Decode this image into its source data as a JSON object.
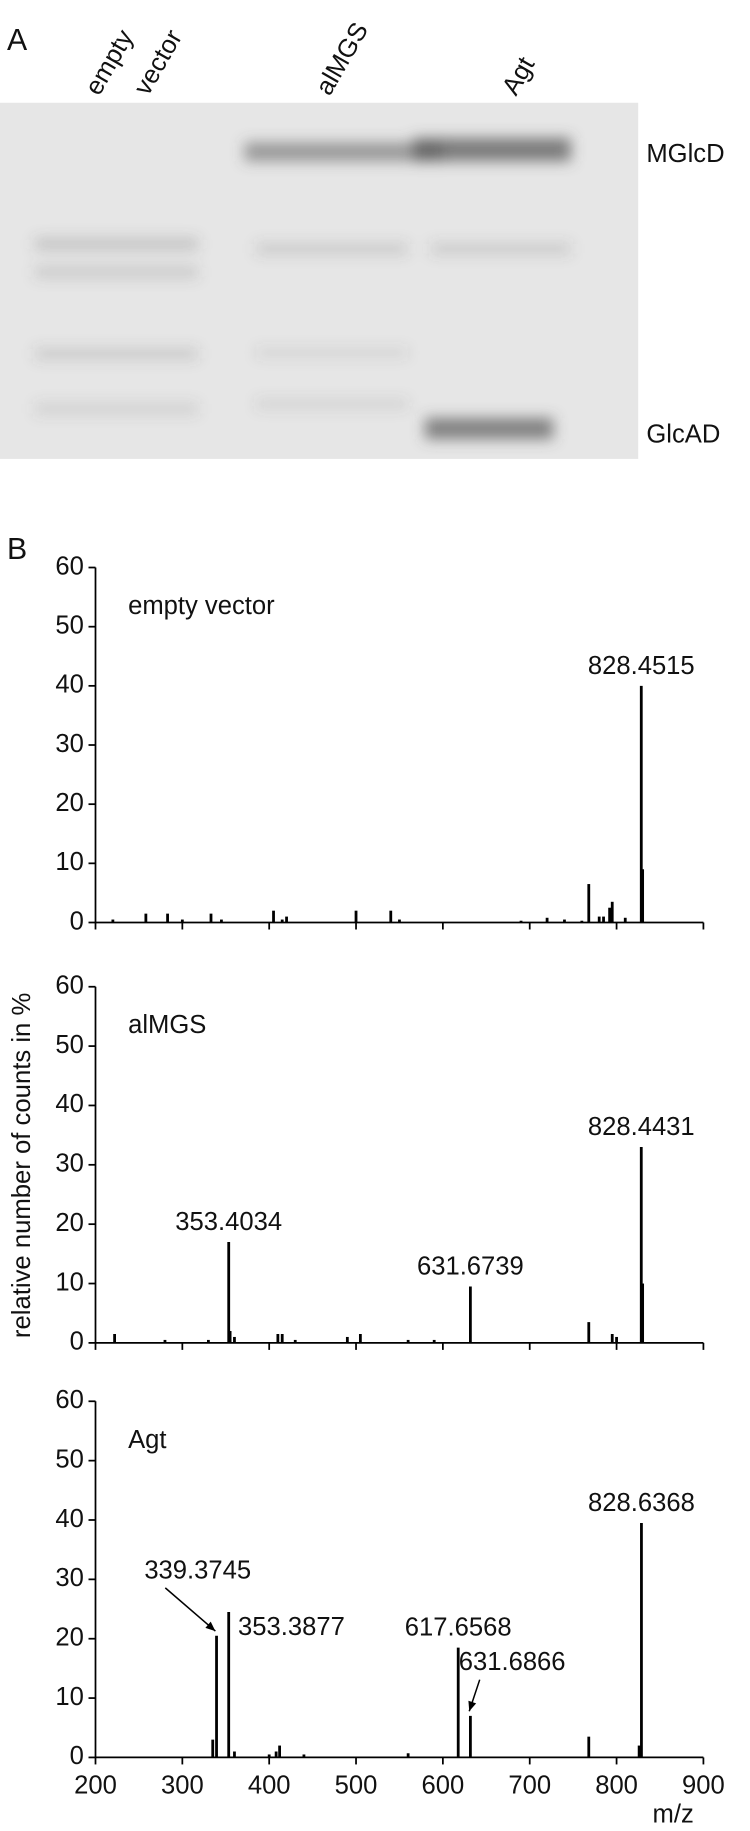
{
  "panel_a": {
    "label": "A",
    "lanes": [
      "empty",
      "vector",
      "alMGS",
      "Agt"
    ],
    "bands": [
      "MGlcD",
      "GlcAD"
    ]
  },
  "panel_b_label": "B",
  "y_label": "relative number of counts in %",
  "x_label": "m/z",
  "chart_data": [
    {
      "type": "bar",
      "title": "empty vector",
      "color": "#000000",
      "xlim": [
        200,
        900
      ],
      "ylim": [
        0,
        60
      ],
      "xticks": [
        200,
        300,
        400,
        500,
        600,
        700,
        800,
        900
      ],
      "yticks": [
        0,
        10,
        20,
        30,
        40,
        50,
        60
      ],
      "labeled_peaks": [
        0
      ],
      "arrow_peaks": [],
      "x": [
        828.4515,
        830,
        768,
        795,
        792,
        785,
        780,
        810,
        500,
        540,
        405,
        333,
        283,
        258,
        220,
        300,
        345,
        420,
        415,
        550,
        720,
        740,
        760,
        690
      ],
      "values": [
        40,
        9,
        6.5,
        3.5,
        2.5,
        1,
        1,
        0.8,
        2,
        2,
        2,
        1.5,
        1.5,
        1.5,
        0.5,
        0.5,
        0.5,
        1,
        0.5,
        0.5,
        0.8,
        0.5,
        0.3,
        0.3
      ]
    },
    {
      "type": "bar",
      "title": "alMGS",
      "color": "#000000",
      "xlim": [
        200,
        900
      ],
      "ylim": [
        0,
        60
      ],
      "xticks": [
        200,
        300,
        400,
        500,
        600,
        700,
        800,
        900
      ],
      "yticks": [
        0,
        10,
        20,
        30,
        40,
        50,
        60
      ],
      "labeled_peaks": [
        0,
        1,
        2
      ],
      "arrow_peaks": [],
      "x": [
        828.4431,
        353.4034,
        631.6739,
        830,
        355,
        768,
        800,
        795,
        222,
        280,
        330,
        360,
        410,
        415,
        430,
        490,
        505,
        560,
        590
      ],
      "values": [
        33,
        17,
        9.5,
        10,
        2,
        3.5,
        1,
        1.5,
        1.5,
        0.5,
        0.5,
        1,
        1.5,
        1.5,
        0.5,
        1,
        1.5,
        0.5,
        0.5
      ]
    },
    {
      "type": "bar",
      "title": "Agt",
      "color": "#000000",
      "xlim": [
        200,
        900
      ],
      "ylim": [
        0,
        60
      ],
      "xticks": [
        200,
        300,
        400,
        500,
        600,
        700,
        800,
        900
      ],
      "yticks": [
        0,
        10,
        20,
        30,
        40,
        50,
        60
      ],
      "labeled_peaks": [
        0,
        1,
        2,
        3,
        4
      ],
      "arrow_peaks": [
        1,
        4
      ],
      "x": [
        828.6368,
        339.3745,
        353.3877,
        617.6568,
        631.6866,
        335,
        768,
        412,
        408,
        360,
        560,
        826,
        400,
        440
      ],
      "values": [
        39.5,
        20.5,
        24.5,
        18.5,
        7,
        3,
        3.5,
        2,
        1,
        1,
        0.7,
        2,
        0.5,
        0.5
      ]
    }
  ]
}
